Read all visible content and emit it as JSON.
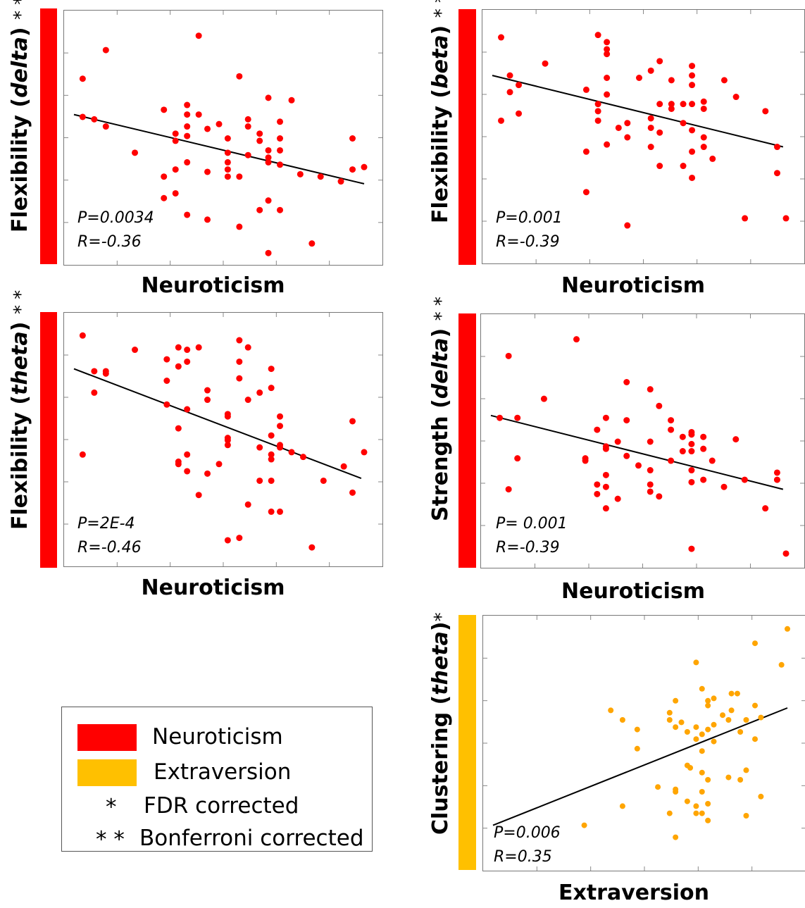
{
  "legend": {
    "items": [
      {
        "label": "Neuroticism",
        "color": "#ff0000"
      },
      {
        "label": "Extraversion",
        "color": "#ffc000"
      }
    ],
    "notes": [
      {
        "symbol": "*",
        "label": "FDR corrected"
      },
      {
        "symbol": "* *",
        "label": "Bonferroni corrected"
      }
    ]
  },
  "chart_data": [
    {
      "type": "scatter",
      "ylabel_pre": "Flexibility  (",
      "ylabel_em": "delta",
      "ylabel_post": ")",
      "stars": "* *",
      "xlabel": "Neuroticism",
      "bar_color": "#ff0000",
      "point_color": "#ff0000",
      "stat_p": "P=0.0034",
      "stat_r": "R=-0.36",
      "xlim": [
        0,
        1
      ],
      "ylim": [
        0,
        1
      ],
      "points": [
        [
          0.03,
          0.75
        ],
        [
          0.03,
          0.59
        ],
        [
          0.07,
          0.58
        ],
        [
          0.11,
          0.87
        ],
        [
          0.11,
          0.55
        ],
        [
          0.21,
          0.44
        ],
        [
          0.31,
          0.62
        ],
        [
          0.31,
          0.34
        ],
        [
          0.31,
          0.25
        ],
        [
          0.35,
          0.52
        ],
        [
          0.35,
          0.49
        ],
        [
          0.35,
          0.37
        ],
        [
          0.35,
          0.27
        ],
        [
          0.39,
          0.64
        ],
        [
          0.39,
          0.6
        ],
        [
          0.39,
          0.55
        ],
        [
          0.39,
          0.51
        ],
        [
          0.39,
          0.4
        ],
        [
          0.39,
          0.18
        ],
        [
          0.43,
          0.93
        ],
        [
          0.43,
          0.6
        ],
        [
          0.46,
          0.54
        ],
        [
          0.46,
          0.36
        ],
        [
          0.46,
          0.16
        ],
        [
          0.5,
          0.56
        ],
        [
          0.53,
          0.5
        ],
        [
          0.53,
          0.44
        ],
        [
          0.53,
          0.4
        ],
        [
          0.53,
          0.37
        ],
        [
          0.53,
          0.34
        ],
        [
          0.57,
          0.76
        ],
        [
          0.57,
          0.34
        ],
        [
          0.57,
          0.13
        ],
        [
          0.6,
          0.58
        ],
        [
          0.6,
          0.55
        ],
        [
          0.6,
          0.43
        ],
        [
          0.64,
          0.52
        ],
        [
          0.64,
          0.49
        ],
        [
          0.64,
          0.2
        ],
        [
          0.67,
          0.67
        ],
        [
          0.67,
          0.45
        ],
        [
          0.67,
          0.42
        ],
        [
          0.67,
          0.4
        ],
        [
          0.67,
          0.24
        ],
        [
          0.67,
          0.02
        ],
        [
          0.71,
          0.57
        ],
        [
          0.71,
          0.5
        ],
        [
          0.71,
          0.45
        ],
        [
          0.71,
          0.39
        ],
        [
          0.71,
          0.2
        ],
        [
          0.75,
          0.66
        ],
        [
          0.78,
          0.35
        ],
        [
          0.82,
          0.06
        ],
        [
          0.85,
          0.34
        ],
        [
          0.92,
          0.32
        ],
        [
          0.96,
          0.5
        ],
        [
          0.96,
          0.37
        ],
        [
          1.0,
          0.38
        ]
      ],
      "fit": [
        [
          0.0,
          0.6
        ],
        [
          1.0,
          0.31
        ]
      ]
    },
    {
      "type": "scatter",
      "ylabel_pre": "Flexibility (",
      "ylabel_em": "beta",
      "ylabel_post": ")",
      "stars": "* *",
      "xlabel": "Neuroticism",
      "bar_color": "#ff0000",
      "point_color": "#ff0000",
      "stat_p": "P=0.001",
      "stat_r": "R=-0.39",
      "xlim": [
        0,
        1
      ],
      "ylim": [
        0,
        1
      ],
      "points": [
        [
          0.03,
          0.92
        ],
        [
          0.03,
          0.57
        ],
        [
          0.06,
          0.76
        ],
        [
          0.06,
          0.69
        ],
        [
          0.09,
          0.72
        ],
        [
          0.09,
          0.6
        ],
        [
          0.18,
          0.81
        ],
        [
          0.32,
          0.7
        ],
        [
          0.32,
          0.44
        ],
        [
          0.32,
          0.27
        ],
        [
          0.36,
          0.93
        ],
        [
          0.36,
          0.64
        ],
        [
          0.36,
          0.61
        ],
        [
          0.36,
          0.57
        ],
        [
          0.39,
          0.9
        ],
        [
          0.39,
          0.87
        ],
        [
          0.39,
          0.85
        ],
        [
          0.39,
          0.75
        ],
        [
          0.39,
          0.68
        ],
        [
          0.39,
          0.47
        ],
        [
          0.43,
          0.54
        ],
        [
          0.46,
          0.56
        ],
        [
          0.46,
          0.5
        ],
        [
          0.46,
          0.13
        ],
        [
          0.5,
          0.75
        ],
        [
          0.54,
          0.78
        ],
        [
          0.54,
          0.58
        ],
        [
          0.54,
          0.54
        ],
        [
          0.54,
          0.46
        ],
        [
          0.57,
          0.64
        ],
        [
          0.57,
          0.52
        ],
        [
          0.57,
          0.38
        ],
        [
          0.57,
          0.82
        ],
        [
          0.61,
          0.74
        ],
        [
          0.61,
          0.64
        ],
        [
          0.61,
          0.62
        ],
        [
          0.65,
          0.64
        ],
        [
          0.65,
          0.38
        ],
        [
          0.65,
          0.56
        ],
        [
          0.68,
          0.8
        ],
        [
          0.68,
          0.76
        ],
        [
          0.68,
          0.72
        ],
        [
          0.68,
          0.64
        ],
        [
          0.68,
          0.53
        ],
        [
          0.68,
          0.44
        ],
        [
          0.68,
          0.33
        ],
        [
          0.72,
          0.65
        ],
        [
          0.72,
          0.62
        ],
        [
          0.72,
          0.5
        ],
        [
          0.72,
          0.46
        ],
        [
          0.75,
          0.41
        ],
        [
          0.79,
          0.74
        ],
        [
          0.83,
          0.67
        ],
        [
          0.86,
          0.16
        ],
        [
          0.93,
          0.61
        ],
        [
          0.97,
          0.46
        ],
        [
          0.97,
          0.35
        ],
        [
          1.0,
          0.16
        ]
      ],
      "fit": [
        [
          0.0,
          0.76
        ],
        [
          0.99,
          0.46
        ]
      ]
    },
    {
      "type": "scatter",
      "ylabel_pre": "Flexibility (",
      "ylabel_em": "theta",
      "ylabel_post": ")",
      "stars": "* *",
      "xlabel": "Neuroticism",
      "bar_color": "#ff0000",
      "point_color": "#ff0000",
      "stat_p": "P=2E-4",
      "stat_r": "R=-0.46",
      "xlim": [
        0,
        1
      ],
      "ylim": [
        0,
        1
      ],
      "points": [
        [
          0.03,
          0.94
        ],
        [
          0.03,
          0.44
        ],
        [
          0.07,
          0.79
        ],
        [
          0.07,
          0.7
        ],
        [
          0.11,
          0.79
        ],
        [
          0.11,
          0.78
        ],
        [
          0.21,
          0.88
        ],
        [
          0.32,
          0.84
        ],
        [
          0.32,
          0.75
        ],
        [
          0.32,
          0.65
        ],
        [
          0.36,
          0.89
        ],
        [
          0.36,
          0.81
        ],
        [
          0.36,
          0.55
        ],
        [
          0.36,
          0.41
        ],
        [
          0.36,
          0.4
        ],
        [
          0.39,
          0.88
        ],
        [
          0.39,
          0.83
        ],
        [
          0.39,
          0.63
        ],
        [
          0.39,
          0.44
        ],
        [
          0.39,
          0.37
        ],
        [
          0.43,
          0.89
        ],
        [
          0.43,
          0.27
        ],
        [
          0.46,
          0.71
        ],
        [
          0.46,
          0.67
        ],
        [
          0.46,
          0.36
        ],
        [
          0.5,
          0.4
        ],
        [
          0.53,
          0.6
        ],
        [
          0.53,
          0.61
        ],
        [
          0.53,
          0.48
        ],
        [
          0.53,
          0.51
        ],
        [
          0.53,
          0.5
        ],
        [
          0.53,
          0.08
        ],
        [
          0.57,
          0.92
        ],
        [
          0.57,
          0.83
        ],
        [
          0.57,
          0.76
        ],
        [
          0.57,
          0.09
        ],
        [
          0.6,
          0.89
        ],
        [
          0.6,
          0.67
        ],
        [
          0.6,
          0.23
        ],
        [
          0.64,
          0.7
        ],
        [
          0.64,
          0.47
        ],
        [
          0.64,
          0.33
        ],
        [
          0.68,
          0.8
        ],
        [
          0.68,
          0.72
        ],
        [
          0.68,
          0.52
        ],
        [
          0.68,
          0.44
        ],
        [
          0.68,
          0.42
        ],
        [
          0.68,
          0.33
        ],
        [
          0.68,
          0.2
        ],
        [
          0.71,
          0.6
        ],
        [
          0.71,
          0.56
        ],
        [
          0.71,
          0.48
        ],
        [
          0.71,
          0.47
        ],
        [
          0.71,
          0.2
        ],
        [
          0.75,
          0.45
        ],
        [
          0.79,
          0.43
        ],
        [
          0.82,
          0.05
        ],
        [
          0.86,
          0.33
        ],
        [
          0.93,
          0.39
        ],
        [
          0.96,
          0.58
        ],
        [
          0.96,
          0.28
        ],
        [
          1.0,
          0.45
        ]
      ],
      "fit": [
        [
          0.0,
          0.8
        ],
        [
          0.99,
          0.34
        ]
      ]
    },
    {
      "type": "scatter",
      "ylabel_pre": "Strength (",
      "ylabel_em": "delta",
      "ylabel_post": ")",
      "stars": "* *",
      "xlabel": "Neuroticism",
      "bar_color": "#ff0000",
      "point_color": "#ff0000",
      "stat_p": "P= 0.001",
      "stat_r": "R=-0.39",
      "xlim": [
        0,
        1
      ],
      "ylim": [
        0,
        1
      ],
      "points": [
        [
          0.03,
          0.6
        ],
        [
          0.06,
          0.86
        ],
        [
          0.06,
          0.3
        ],
        [
          0.09,
          0.6
        ],
        [
          0.09,
          0.43
        ],
        [
          0.18,
          0.68
        ],
        [
          0.29,
          0.93
        ],
        [
          0.32,
          0.43
        ],
        [
          0.32,
          0.42
        ],
        [
          0.36,
          0.55
        ],
        [
          0.36,
          0.32
        ],
        [
          0.36,
          0.28
        ],
        [
          0.39,
          0.6
        ],
        [
          0.39,
          0.48
        ],
        [
          0.39,
          0.47
        ],
        [
          0.39,
          0.36
        ],
        [
          0.39,
          0.31
        ],
        [
          0.39,
          0.22
        ],
        [
          0.43,
          0.5
        ],
        [
          0.43,
          0.26
        ],
        [
          0.46,
          0.75
        ],
        [
          0.46,
          0.59
        ],
        [
          0.46,
          0.44
        ],
        [
          0.5,
          0.4
        ],
        [
          0.54,
          0.72
        ],
        [
          0.54,
          0.5
        ],
        [
          0.54,
          0.38
        ],
        [
          0.54,
          0.32
        ],
        [
          0.54,
          0.29
        ],
        [
          0.57,
          0.65
        ],
        [
          0.57,
          0.27
        ],
        [
          0.61,
          0.59
        ],
        [
          0.61,
          0.55
        ],
        [
          0.61,
          0.42
        ],
        [
          0.65,
          0.52
        ],
        [
          0.65,
          0.46
        ],
        [
          0.68,
          0.54
        ],
        [
          0.68,
          0.53
        ],
        [
          0.68,
          0.46
        ],
        [
          0.68,
          0.49
        ],
        [
          0.68,
          0.38
        ],
        [
          0.68,
          0.33
        ],
        [
          0.68,
          0.05
        ],
        [
          0.72,
          0.52
        ],
        [
          0.72,
          0.47
        ],
        [
          0.72,
          0.34
        ],
        [
          0.75,
          0.42
        ],
        [
          0.79,
          0.31
        ],
        [
          0.83,
          0.51
        ],
        [
          0.86,
          0.34
        ],
        [
          0.93,
          0.22
        ],
        [
          0.97,
          0.37
        ],
        [
          0.97,
          0.34
        ],
        [
          1.0,
          0.03
        ]
      ],
      "fit": [
        [
          0.0,
          0.61
        ],
        [
          0.99,
          0.3
        ]
      ]
    },
    {
      "type": "scatter",
      "ylabel_pre": "Clustering (",
      "ylabel_em": "theta",
      "ylabel_post": ")",
      "stars": "*",
      "xlabel": "Extraversion",
      "bar_color": "#ffc000",
      "point_color": "#ffa500",
      "stat_p": "P=0.006",
      "stat_r": "R=0.35",
      "xlim": [
        0,
        1
      ],
      "ylim": [
        0,
        1
      ],
      "points": [
        [
          0.31,
          0.16
        ],
        [
          0.4,
          0.64
        ],
        [
          0.44,
          0.6
        ],
        [
          0.44,
          0.24
        ],
        [
          0.49,
          0.56
        ],
        [
          0.49,
          0.48
        ],
        [
          0.56,
          0.32
        ],
        [
          0.6,
          0.63
        ],
        [
          0.6,
          0.6
        ],
        [
          0.6,
          0.21
        ],
        [
          0.62,
          0.68
        ],
        [
          0.62,
          0.57
        ],
        [
          0.62,
          0.31
        ],
        [
          0.62,
          0.3
        ],
        [
          0.62,
          0.11
        ],
        [
          0.64,
          0.59
        ],
        [
          0.66,
          0.55
        ],
        [
          0.66,
          0.41
        ],
        [
          0.66,
          0.26
        ],
        [
          0.67,
          0.4
        ],
        [
          0.69,
          0.84
        ],
        [
          0.69,
          0.57
        ],
        [
          0.69,
          0.52
        ],
        [
          0.69,
          0.24
        ],
        [
          0.69,
          0.21
        ],
        [
          0.71,
          0.73
        ],
        [
          0.71,
          0.54
        ],
        [
          0.71,
          0.47
        ],
        [
          0.71,
          0.38
        ],
        [
          0.71,
          0.3
        ],
        [
          0.71,
          0.21
        ],
        [
          0.73,
          0.68
        ],
        [
          0.73,
          0.66
        ],
        [
          0.73,
          0.56
        ],
        [
          0.73,
          0.35
        ],
        [
          0.73,
          0.25
        ],
        [
          0.73,
          0.18
        ],
        [
          0.75,
          0.69
        ],
        [
          0.75,
          0.58
        ],
        [
          0.75,
          0.51
        ],
        [
          0.78,
          0.62
        ],
        [
          0.8,
          0.6
        ],
        [
          0.8,
          0.36
        ],
        [
          0.81,
          0.71
        ],
        [
          0.81,
          0.64
        ],
        [
          0.83,
          0.71
        ],
        [
          0.84,
          0.55
        ],
        [
          0.84,
          0.35
        ],
        [
          0.86,
          0.6
        ],
        [
          0.86,
          0.39
        ],
        [
          0.86,
          0.2
        ],
        [
          0.89,
          0.66
        ],
        [
          0.89,
          0.52
        ],
        [
          0.91,
          0.61
        ],
        [
          0.91,
          0.28
        ],
        [
          0.89,
          0.92
        ],
        [
          0.98,
          0.83
        ],
        [
          1.0,
          0.98
        ]
      ],
      "fit": [
        [
          0.0,
          0.16
        ],
        [
          1.0,
          0.65
        ]
      ]
    }
  ]
}
